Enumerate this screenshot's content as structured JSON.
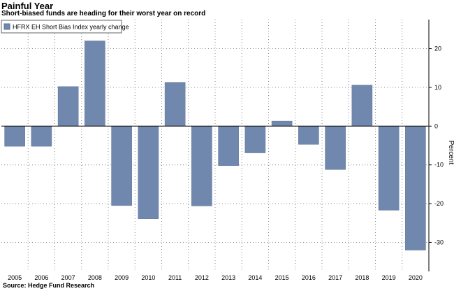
{
  "header": {
    "title": "Painful Year",
    "subtitle": "Short-biased funds are heading for their worst year on record"
  },
  "footer": {
    "source": "Source: Hedge Fund Research"
  },
  "colors": {
    "bar": "#7088ad",
    "bar_stroke": "#5b7296",
    "grid": "#8a8a8a"
  },
  "chart_data": {
    "type": "bar",
    "categories": [
      "2005",
      "2006",
      "2007",
      "2008",
      "2009",
      "2010",
      "2011",
      "2012",
      "2013",
      "2014",
      "2015",
      "2016",
      "2017",
      "2018",
      "2019",
      "2020"
    ],
    "series": [
      {
        "name": "HFRX EH Short Bias Index yearly change",
        "values": [
          -5.2,
          -5.2,
          10.2,
          22.0,
          -20.5,
          -23.9,
          11.3,
          -20.6,
          -10.2,
          -6.9,
          1.3,
          -4.7,
          -11.2,
          10.6,
          -21.7,
          -32.0
        ]
      }
    ],
    "ylabel": "Percent",
    "ylim": [
      -37.5,
      27.5
    ],
    "yticks": [
      20,
      10,
      0,
      -10,
      -20,
      -30
    ],
    "grid": true,
    "legend_position": "top-left"
  }
}
